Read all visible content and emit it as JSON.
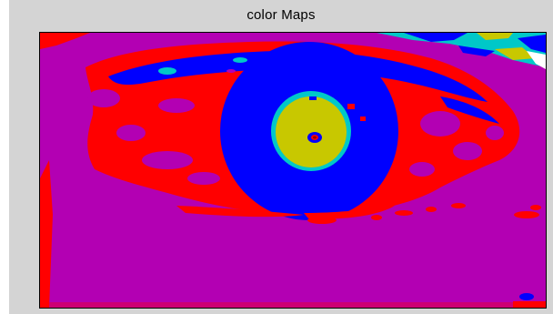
{
  "window": {
    "title": "color Maps"
  },
  "image": {
    "icon": "color-mapped-eye-image",
    "palette": {
      "magenta": "#b300b3",
      "red": "#ff0000",
      "blue": "#0000ff",
      "cyan": "#00c8c8",
      "yellow": "#c8c800",
      "dark_red": "#990000"
    }
  }
}
